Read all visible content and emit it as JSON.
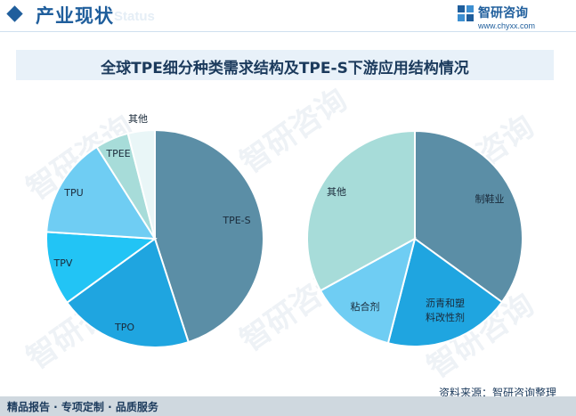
{
  "header": {
    "section_title": "产业现状",
    "section_title_en": "Status",
    "brand_name": "智研咨询",
    "brand_url": "www.chyxx.com"
  },
  "watermark": "智研咨询",
  "chart_data": [
    {
      "type": "pie",
      "title": "全球TPE细分种类需求结构及TPE-S下游应用结构情况",
      "slices": [
        {
          "label": "TPE-S",
          "value": 45,
          "color": "#5b8ea6"
        },
        {
          "label": "TPO",
          "value": 20,
          "color": "#1fa5e0"
        },
        {
          "label": "TPV",
          "value": 11,
          "color": "#22c4f5"
        },
        {
          "label": "TPU",
          "value": 15,
          "color": "#6fcdf3"
        },
        {
          "label": "TPEE",
          "value": 5,
          "color": "#a7dcd9"
        },
        {
          "label": "其他",
          "value": 4,
          "color": "#e9f6f7"
        }
      ]
    },
    {
      "type": "pie",
      "slices": [
        {
          "label": "制鞋业",
          "value": 35,
          "color": "#5b8ea6"
        },
        {
          "label": "沥青和塑料改性剂",
          "value": 19,
          "color": "#1fa5e0"
        },
        {
          "label": "粘合剂",
          "value": 13,
          "color": "#6fcdf3"
        },
        {
          "label": "其他",
          "value": 33,
          "color": "#a7dcd9"
        }
      ]
    }
  ],
  "source": "资料来源：智研咨询整理",
  "footer": "精品报告 · 专项定制 · 品质服务"
}
